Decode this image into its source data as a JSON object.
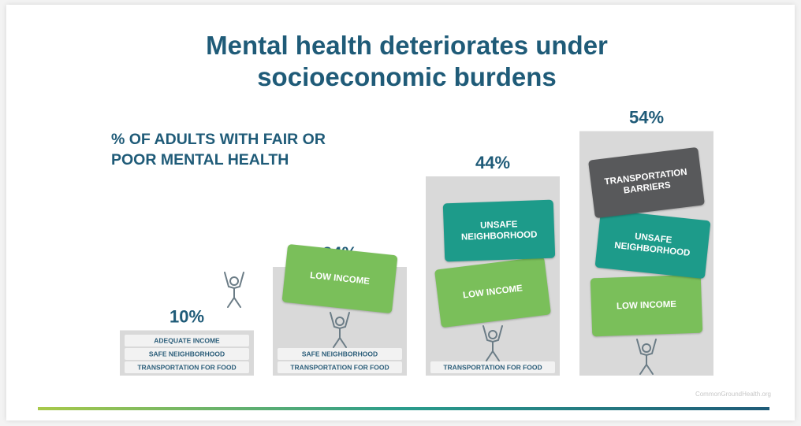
{
  "chart_data": {
    "type": "bar",
    "title": "Mental health deteriorates under socioeconomic burdens",
    "subtitle": "% OF ADULTS WITH FAIR OR POOR MENTAL HEALTH",
    "values": [
      10,
      24,
      44,
      54
    ],
    "value_labels": [
      "10%",
      "24%",
      "44%",
      "54%"
    ],
    "color": "#d9d9d9",
    "bars": [
      {
        "supports": [
          "ADEQUATE INCOME",
          "SAFE NEIGHBORHOOD",
          "TRANSPORTATION FOR FOOD"
        ],
        "burdens": []
      },
      {
        "supports": [
          "SAFE NEIGHBORHOOD",
          "TRANSPORTATION FOR FOOD"
        ],
        "burdens": [
          {
            "label": "LOW INCOME",
            "color": "#7abf5a"
          }
        ]
      },
      {
        "supports": [
          "TRANSPORTATION FOR FOOD"
        ],
        "burdens": [
          {
            "label": "LOW INCOME",
            "color": "#7abf5a"
          },
          {
            "label": "UNSAFE NEIGHBORHOOD",
            "color": "#1d9b8a"
          }
        ]
      },
      {
        "supports": [],
        "burdens": [
          {
            "label": "LOW INCOME",
            "color": "#7abf5a"
          },
          {
            "label": "UNSAFE NEIGHBORHOOD",
            "color": "#1d9b8a"
          },
          {
            "label": "TRANSPORTATION BARRIERS",
            "color": "#58595b"
          }
        ]
      }
    ],
    "source": "CommonGroundHealth.org"
  }
}
